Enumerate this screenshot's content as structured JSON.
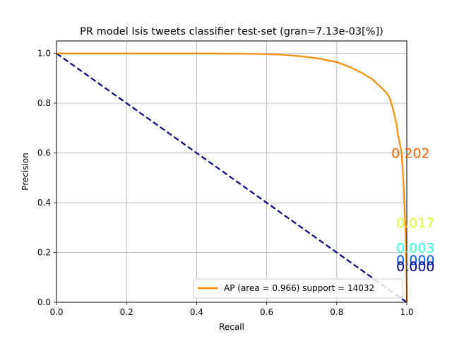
{
  "chart_data": {
    "type": "line",
    "title": "PR model Isis tweets classifier test-set  (gran=7.13e-03[%])",
    "xlabel": "Recall",
    "ylabel": "Precision",
    "xlim": [
      0.0,
      1.0
    ],
    "ylim": [
      0.0,
      1.05
    ],
    "xticks": [
      "0.0",
      "0.2",
      "0.4",
      "0.6",
      "0.8",
      "1.0"
    ],
    "yticks": [
      "0.0",
      "0.2",
      "0.4",
      "0.6",
      "0.8",
      "1.0"
    ],
    "grid": true,
    "legend_position": "lower-right",
    "series": [
      {
        "name": "AP (area = 0.966) support = 14032",
        "color": "#ff8c00",
        "x": [
          0.0,
          0.1,
          0.2,
          0.3,
          0.4,
          0.5,
          0.6,
          0.65,
          0.7,
          0.75,
          0.8,
          0.84,
          0.87,
          0.9,
          0.92,
          0.94,
          0.95,
          0.96,
          0.97,
          0.975,
          0.98,
          0.985,
          0.99,
          0.993,
          0.996,
          0.998,
          1.0
        ],
        "y": [
          1.0,
          1.0,
          1.0,
          1.0,
          1.0,
          0.999,
          0.997,
          0.994,
          0.988,
          0.979,
          0.965,
          0.944,
          0.923,
          0.898,
          0.872,
          0.845,
          0.825,
          0.78,
          0.72,
          0.67,
          0.64,
          0.6,
          0.5,
          0.4,
          0.3,
          0.22,
          0.0
        ]
      }
    ],
    "reference_line": {
      "x": [
        0.0,
        1.0
      ],
      "y": [
        1.0,
        0.0
      ],
      "color": "#000080",
      "style": "dashed"
    },
    "annotations": [
      {
        "text": "0.202",
        "x": 0.956,
        "y": 0.6,
        "color": "#ff5f00"
      },
      {
        "text": "0.017",
        "x": 0.97,
        "y": 0.32,
        "color": "#d4ff3a"
      },
      {
        "text": "0.003",
        "x": 0.97,
        "y": 0.22,
        "color": "#3affdb"
      },
      {
        "text": "0.000",
        "x": 0.97,
        "y": 0.17,
        "color": "#0050ff"
      },
      {
        "text": "0.000",
        "x": 0.97,
        "y": 0.145,
        "color": "#000080"
      }
    ]
  }
}
